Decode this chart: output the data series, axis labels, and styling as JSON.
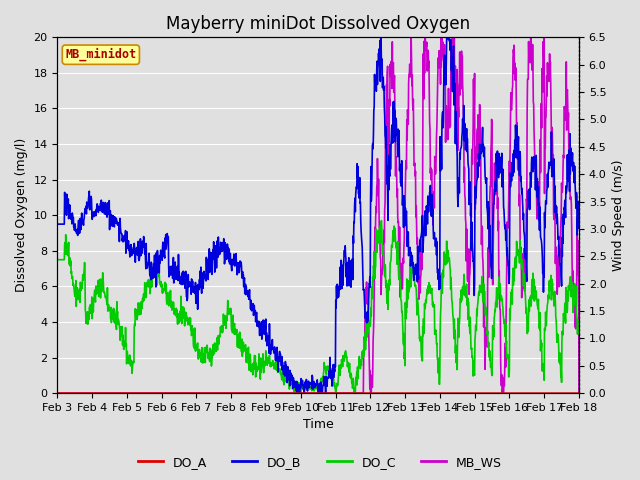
{
  "title": "Mayberry miniDot Dissolved Oxygen",
  "xlabel": "Time",
  "ylabel_left": "Dissolved Oxygen (mg/l)",
  "ylabel_right": "Wind Speed (m/s)",
  "ylim_left": [
    0,
    20
  ],
  "ylim_right": [
    0.0,
    6.5
  ],
  "yticks_left": [
    0,
    2,
    4,
    6,
    8,
    10,
    12,
    14,
    16,
    18,
    20
  ],
  "yticks_right": [
    0.0,
    0.5,
    1.0,
    1.5,
    2.0,
    2.5,
    3.0,
    3.5,
    4.0,
    4.5,
    5.0,
    5.5,
    6.0,
    6.5
  ],
  "xtick_labels": [
    "Feb 3",
    "Feb 4",
    "Feb 5",
    "Feb 6",
    "Feb 7",
    "Feb 8",
    "Feb 9",
    "Feb 10",
    "Feb 11",
    "Feb 12",
    "Feb 13",
    "Feb 14",
    "Feb 15",
    "Feb 16",
    "Feb 17",
    "Feb 18"
  ],
  "background_color": "#e0e0e0",
  "line_colors": {
    "DO_A": "#dd0000",
    "DO_B": "#0000dd",
    "DO_C": "#00cc00",
    "MB_WS": "#cc00cc"
  },
  "line_widths": {
    "DO_A": 1.2,
    "DO_B": 1.2,
    "DO_C": 1.2,
    "MB_WS": 1.2
  },
  "watermark_text": "MB_minidot",
  "watermark_color": "#aa0000",
  "watermark_bg": "#ffff99",
  "watermark_border": "#cc8800",
  "title_fontsize": 12,
  "axis_label_fontsize": 9,
  "tick_fontsize": 8,
  "legend_fontsize": 9,
  "grid_color": "#ffffff",
  "grid_linewidth": 0.8,
  "n_days": 15,
  "ws_scale": 3.076923076923077,
  "figsize": [
    6.4,
    4.8
  ],
  "dpi": 100
}
